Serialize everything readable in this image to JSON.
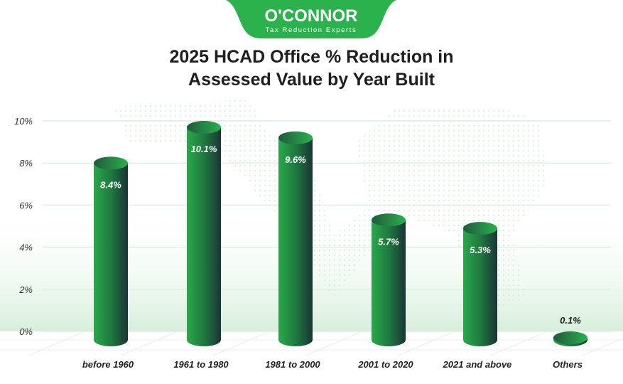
{
  "logo": {
    "brand": "O'CONNOR",
    "tagline": "Tax Reduction Experts"
  },
  "colors": {
    "brand": "#2bb24c",
    "bar_light": "#28a84a",
    "bar_dark": "#1b3a34",
    "grid": "#dcefe0"
  },
  "chart_data": {
    "type": "bar",
    "title_lines": [
      "2025 HCAD Office % Reduction in",
      "Assessed Value by Year Built"
    ],
    "categories": [
      "before 1960",
      "1961 to 1980",
      "1981 to 2000",
      "2001 to 2020",
      "2021 and above",
      "Others"
    ],
    "values": [
      8.4,
      10.1,
      9.6,
      5.7,
      5.3,
      0.1
    ],
    "data_labels": [
      "8.4%",
      "10.1%",
      "9.6%",
      "5.7%",
      "5.3%",
      "0.1%"
    ],
    "yticks": [
      "0%",
      "2%",
      "4%",
      "6%",
      "8%",
      "10%"
    ],
    "ytick_values": [
      0,
      2,
      4,
      6,
      8,
      10
    ],
    "ylim": [
      0,
      10
    ],
    "xlabel": "",
    "ylabel": "",
    "grid": true,
    "legend": "none"
  }
}
